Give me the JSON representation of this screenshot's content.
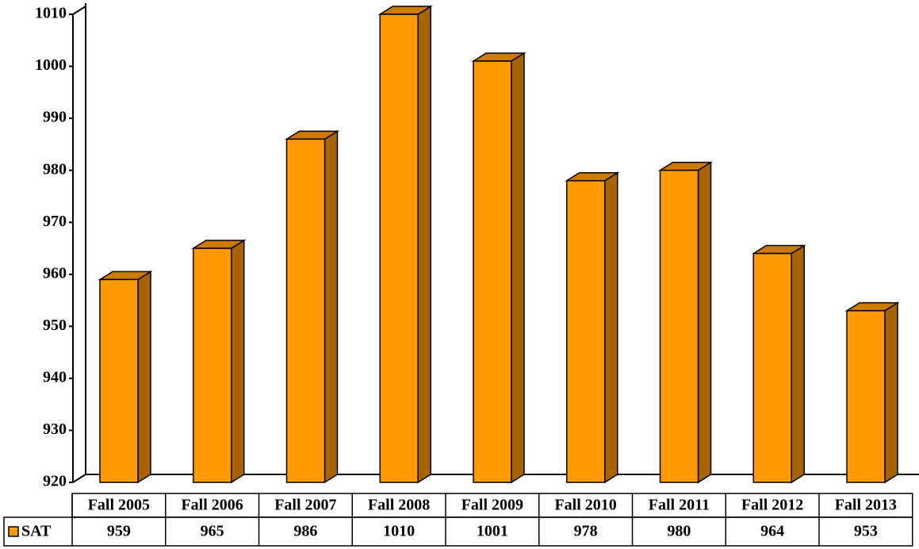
{
  "chart_data": {
    "type": "bar3d",
    "categories": [
      "Fall 2005",
      "Fall 2006",
      "Fall 2007",
      "Fall 2008",
      "Fall 2009",
      "Fall 2010",
      "Fall 2011",
      "Fall 2012",
      "Fall 2013"
    ],
    "series": [
      {
        "name": "SAT",
        "color": "#FF9900",
        "values": [
          959,
          965,
          986,
          1010,
          1001,
          978,
          980,
          964,
          953
        ]
      }
    ],
    "ylim": [
      920,
      1010
    ],
    "yticks": [
      920,
      930,
      940,
      950,
      960,
      970,
      980,
      990,
      1000,
      1010
    ]
  }
}
